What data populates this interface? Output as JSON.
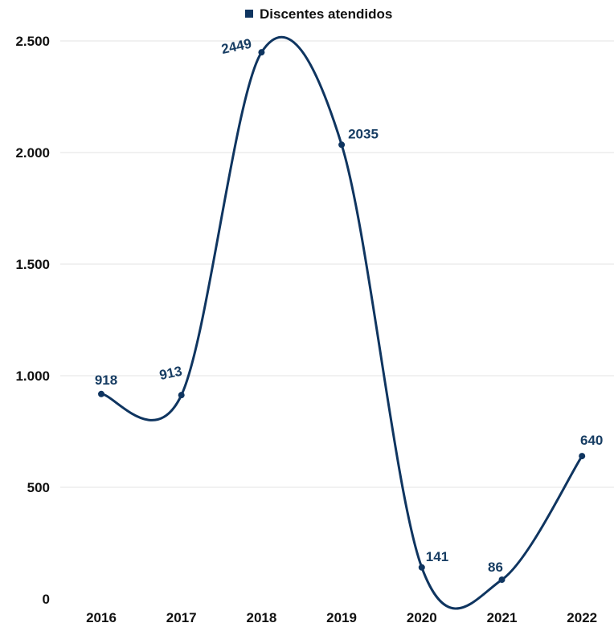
{
  "chart_data": {
    "type": "line",
    "title": "",
    "xlabel": "",
    "ylabel": "",
    "categories": [
      "2016",
      "2017",
      "2018",
      "2019",
      "2020",
      "2021",
      "2022"
    ],
    "series": [
      {
        "name": "Discentes atendidos",
        "values": [
          918,
          913,
          2449,
          2035,
          141,
          86,
          640
        ],
        "color": "#0f3560"
      }
    ],
    "ylim": [
      0,
      2500
    ],
    "yticks": [
      0,
      500,
      1000,
      1500,
      2000,
      2500
    ],
    "ytick_labels": [
      "0",
      "500",
      "1.000",
      "1.500",
      "2.000",
      "2.500"
    ],
    "data_labels": [
      "918",
      "913",
      "2449",
      "2035",
      "141",
      "86",
      "640"
    ],
    "smooth": true,
    "grid": true,
    "legend_position": "top-center",
    "colors": {
      "series": "#0f3560",
      "label": "#173d63",
      "grid": "#e3e3e3",
      "axis_text": "#111111"
    }
  }
}
